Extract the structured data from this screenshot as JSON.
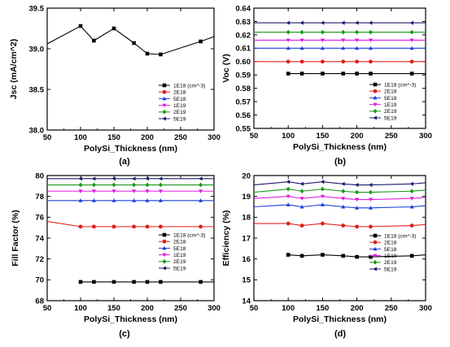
{
  "chart_data": [
    {
      "type": "line",
      "caption": "(a)",
      "xlabel": "PolySi_Thickness (nm)",
      "ylabel": "Jsc (mA/cm^2)",
      "xlim": [
        50,
        300
      ],
      "ylim": [
        38.0,
        39.5
      ],
      "xticks": [
        "50",
        "100",
        "150",
        "200",
        "250",
        "300"
      ],
      "yticks": [
        "38.0",
        "38.5",
        "39.0",
        "39.5"
      ],
      "legend_position": "lower-right",
      "legend": [
        "1E18 (cm^-3)",
        "2E18",
        "5E18",
        "1E19",
        "2E19",
        "5E19"
      ],
      "x": [
        50,
        100,
        120,
        150,
        180,
        200,
        220,
        280,
        300
      ],
      "series": [
        {
          "name": "1E18 (cm^-3)",
          "color": "#000000",
          "marker": "square",
          "values": [
            39.06,
            39.28,
            39.1,
            39.25,
            39.07,
            38.94,
            38.93,
            39.09,
            39.15
          ]
        }
      ]
    },
    {
      "type": "line",
      "caption": "(b)",
      "xlabel": "PolySi_Thickness (nm)",
      "ylabel": "Voc (V)",
      "xlim": [
        50,
        300
      ],
      "ylim": [
        0.55,
        0.64
      ],
      "xticks": [
        "50",
        "100",
        "150",
        "200",
        "250",
        "300"
      ],
      "yticks": [
        "0.55",
        "0.56",
        "0.57",
        "0.58",
        "0.59",
        "0.60",
        "0.61",
        "0.62",
        "0.63",
        "0.64"
      ],
      "legend_position": "lower-right",
      "legend": [
        "1E18 (cm^-3)",
        "2E18",
        "5E18",
        "1E19",
        "2E19",
        "5E19"
      ],
      "x": [
        50,
        100,
        120,
        150,
        180,
        200,
        220,
        280,
        300
      ],
      "series": [
        {
          "name": "1E18 (cm^-3)",
          "color": "#000000",
          "marker": "square",
          "values": [
            null,
            0.591,
            0.591,
            0.591,
            0.591,
            0.591,
            0.591,
            0.591,
            0.591
          ]
        },
        {
          "name": "2E18",
          "color": "#e0201b",
          "marker": "circle",
          "values": [
            0.6,
            0.6,
            0.6,
            0.6,
            0.6,
            0.6,
            0.6,
            0.6,
            0.6
          ]
        },
        {
          "name": "5E18",
          "color": "#1f3fd8",
          "marker": "triangle-up",
          "values": [
            0.61,
            0.61,
            0.61,
            0.61,
            0.61,
            0.61,
            0.61,
            0.61,
            0.61
          ]
        },
        {
          "name": "1E19",
          "color": "#e020e0",
          "marker": "triangle-down",
          "values": [
            0.616,
            0.616,
            0.616,
            0.616,
            0.616,
            0.616,
            0.616,
            0.616,
            0.616
          ]
        },
        {
          "name": "2E19",
          "color": "#1a9a1a",
          "marker": "diamond",
          "values": [
            0.622,
            0.622,
            0.622,
            0.622,
            0.622,
            0.622,
            0.622,
            0.622,
            0.622
          ]
        },
        {
          "name": "5E19",
          "color": "#1b1b6e",
          "marker": "triangle-left",
          "values": [
            0.629,
            0.629,
            0.629,
            0.629,
            0.629,
            0.629,
            0.629,
            0.629,
            0.629
          ]
        }
      ]
    },
    {
      "type": "line",
      "caption": "(c)",
      "xlabel": "PolySi_Thickness (nm)",
      "ylabel": "Fill Factor (%)",
      "xlim": [
        50,
        300
      ],
      "ylim": [
        68,
        80
      ],
      "xticks": [
        "50",
        "100",
        "150",
        "200",
        "250",
        "300"
      ],
      "yticks": [
        "68",
        "70",
        "72",
        "74",
        "76",
        "78",
        "80"
      ],
      "legend_position": "lower-right",
      "legend": [
        "1E18 (cm^-3)",
        "2E18",
        "5E18",
        "1E19",
        "2E19",
        "5E19"
      ],
      "x": [
        50,
        100,
        120,
        150,
        180,
        200,
        220,
        280,
        300
      ],
      "series": [
        {
          "name": "1E18 (cm^-3)",
          "color": "#000000",
          "marker": "square",
          "values": [
            null,
            69.8,
            69.8,
            69.8,
            69.8,
            69.8,
            69.8,
            69.8,
            69.8
          ]
        },
        {
          "name": "2E18",
          "color": "#e0201b",
          "marker": "circle",
          "values": [
            75.6,
            75.1,
            75.1,
            75.1,
            75.1,
            75.1,
            75.1,
            75.1,
            75.1
          ]
        },
        {
          "name": "5E18",
          "color": "#1f3fd8",
          "marker": "triangle-up",
          "values": [
            77.6,
            77.6,
            77.6,
            77.6,
            77.6,
            77.6,
            77.6,
            77.6,
            77.6
          ]
        },
        {
          "name": "1E19",
          "color": "#e020e0",
          "marker": "triangle-down",
          "values": [
            78.5,
            78.5,
            78.5,
            78.5,
            78.5,
            78.5,
            78.5,
            78.5,
            78.5
          ]
        },
        {
          "name": "2E19",
          "color": "#1a9a1a",
          "marker": "diamond",
          "values": [
            79.1,
            79.1,
            79.1,
            79.1,
            79.1,
            79.1,
            79.1,
            79.1,
            79.1
          ]
        },
        {
          "name": "5E19",
          "color": "#1b1b6e",
          "marker": "triangle-left",
          "values": [
            79.7,
            79.7,
            79.7,
            79.7,
            79.7,
            79.7,
            79.7,
            79.7,
            79.7
          ]
        }
      ]
    },
    {
      "type": "line",
      "caption": "(d)",
      "xlabel": "PolySi_Thickness (nm)",
      "ylabel": "Efficiency (%)",
      "xlim": [
        50,
        300
      ],
      "ylim": [
        14,
        20
      ],
      "xticks": [
        "50",
        "100",
        "150",
        "200",
        "250",
        "300"
      ],
      "yticks": [
        "14",
        "15",
        "16",
        "17",
        "18",
        "19",
        "20"
      ],
      "legend_position": "lower-right",
      "legend": [
        "1E18 (cm^-3)",
        "2E18",
        "5E18",
        "1E19",
        "2E19",
        "5E19"
      ],
      "x": [
        50,
        100,
        120,
        150,
        180,
        200,
        220,
        280,
        300
      ],
      "series": [
        {
          "name": "1E18 (cm^-3)",
          "color": "#000000",
          "marker": "square",
          "values": [
            null,
            16.2,
            16.15,
            16.2,
            16.15,
            16.1,
            16.1,
            16.15,
            16.2
          ]
        },
        {
          "name": "2E18",
          "color": "#e0201b",
          "marker": "circle",
          "values": [
            17.7,
            17.7,
            17.6,
            17.7,
            17.6,
            17.55,
            17.55,
            17.6,
            17.65
          ]
        },
        {
          "name": "5E18",
          "color": "#1f3fd8",
          "marker": "triangle-up",
          "values": [
            18.5,
            18.6,
            18.5,
            18.6,
            18.5,
            18.45,
            18.45,
            18.5,
            18.55
          ]
        },
        {
          "name": "1E19",
          "color": "#e020e0",
          "marker": "triangle-down",
          "values": [
            18.9,
            19.0,
            18.9,
            19.0,
            18.9,
            18.85,
            18.85,
            18.9,
            18.95
          ]
        },
        {
          "name": "2E19",
          "color": "#1a9a1a",
          "marker": "diamond",
          "values": [
            19.2,
            19.35,
            19.25,
            19.35,
            19.25,
            19.2,
            19.2,
            19.25,
            19.3
          ]
        },
        {
          "name": "5E19",
          "color": "#1b1b6e",
          "marker": "triangle-left",
          "values": [
            19.55,
            19.7,
            19.6,
            19.7,
            19.6,
            19.55,
            19.55,
            19.6,
            19.65
          ]
        }
      ]
    }
  ]
}
